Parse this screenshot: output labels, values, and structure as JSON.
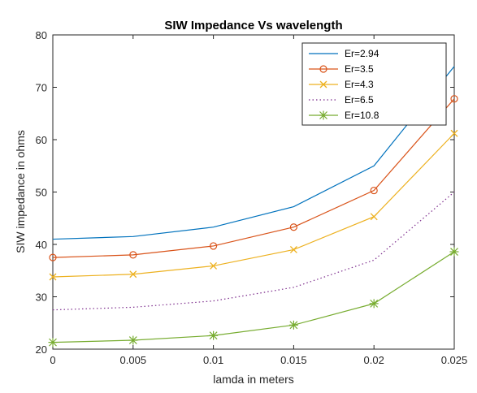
{
  "chart_data": {
    "type": "line",
    "title": "SIW Impedance Vs wavelength",
    "xlabel": "lamda in meters",
    "ylabel": "SIW impedance in ohms",
    "xlim": [
      0,
      0.025
    ],
    "ylim": [
      20,
      80
    ],
    "xticks": [
      0,
      0.005,
      0.01,
      0.015,
      0.02,
      0.025
    ],
    "xtick_labels": [
      "0",
      "0.005",
      "0.01",
      "0.015",
      "0.02",
      "0.025"
    ],
    "yticks": [
      20,
      30,
      40,
      50,
      60,
      70,
      80
    ],
    "ytick_labels": [
      "20",
      "30",
      "40",
      "50",
      "60",
      "70",
      "80"
    ],
    "grid": false,
    "legend_position": "top-right",
    "x": [
      0,
      0.005,
      0.01,
      0.015,
      0.02,
      0.025
    ],
    "series": [
      {
        "name": "Er=2.94",
        "values": [
          41.0,
          41.5,
          43.3,
          47.2,
          55.0,
          74.0
        ],
        "color": "#0072BD",
        "marker": "none",
        "dash": "solid"
      },
      {
        "name": "Er=3.5",
        "values": [
          37.5,
          38.0,
          39.7,
          43.3,
          50.3,
          67.8
        ],
        "color": "#D95319",
        "marker": "circle",
        "dash": "solid"
      },
      {
        "name": "Er=4.3",
        "values": [
          33.8,
          34.3,
          35.9,
          39.0,
          45.3,
          61.2
        ],
        "color": "#EDB120",
        "marker": "x",
        "dash": "solid"
      },
      {
        "name": "Er=6.5",
        "values": [
          27.5,
          28.0,
          29.2,
          31.8,
          37.0,
          50.0
        ],
        "color": "#7E2F8E",
        "marker": "none",
        "dash": "dotted"
      },
      {
        "name": "Er=10.8",
        "values": [
          21.3,
          21.7,
          22.6,
          24.6,
          28.7,
          38.6
        ],
        "color": "#77AC30",
        "marker": "asterisk",
        "dash": "solid"
      }
    ]
  }
}
